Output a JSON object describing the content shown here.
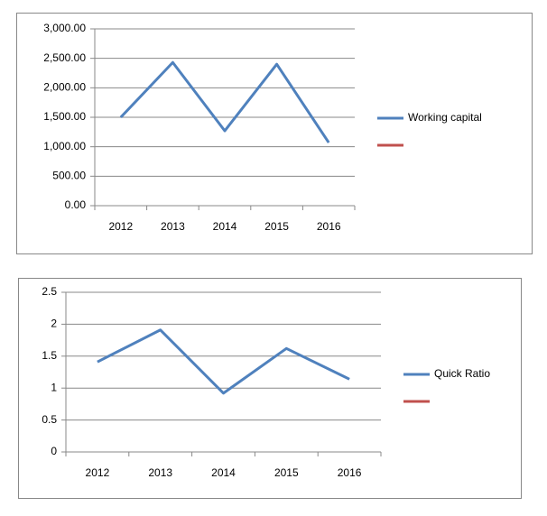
{
  "chart_data": [
    {
      "type": "line",
      "categories": [
        "2012",
        "2013",
        "2014",
        "2015",
        "2016"
      ],
      "series": [
        {
          "name": "Working capital",
          "color": "#4f81bd",
          "values": [
            1500,
            2430,
            1270,
            2400,
            1070
          ]
        },
        {
          "color": "#c0504d",
          "values": [
            null,
            null,
            null,
            null,
            null
          ]
        }
      ],
      "ylim": [
        0,
        3000
      ],
      "yticks": [
        {
          "value": 0,
          "label": "0.00"
        },
        {
          "value": 500,
          "label": "500.00"
        },
        {
          "value": 1000,
          "label": "1,000.00"
        },
        {
          "value": 1500,
          "label": "1,500.00"
        },
        {
          "value": 2000,
          "label": "2,000.00"
        },
        {
          "value": 2500,
          "label": "2,500.00"
        },
        {
          "value": 3000,
          "label": "3,000.00"
        }
      ],
      "grid": true,
      "legend": "right"
    },
    {
      "type": "line",
      "categories": [
        "2012",
        "2013",
        "2014",
        "2015",
        "2016"
      ],
      "series": [
        {
          "name": "Quick Ratio",
          "color": "#4f81bd",
          "values": [
            1.41,
            1.91,
            0.92,
            1.62,
            1.14
          ]
        },
        {
          "color": "#c0504d",
          "values": [
            null,
            null,
            null,
            null,
            null
          ]
        }
      ],
      "ylim": [
        0,
        2.5
      ],
      "yticks": [
        0,
        0.5,
        1,
        1.5,
        2,
        2.5
      ],
      "grid": true,
      "legend": "right"
    }
  ]
}
